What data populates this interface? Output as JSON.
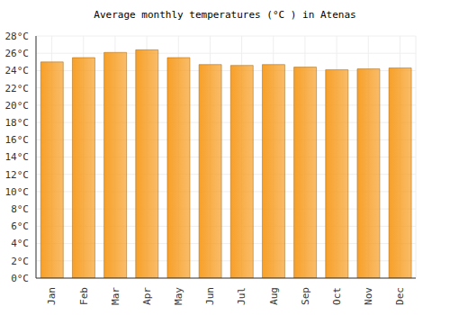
{
  "chart_data": {
    "type": "bar",
    "title": "Average monthly temperatures (°C ) in Atenas",
    "categories": [
      "Jan",
      "Feb",
      "Mar",
      "Apr",
      "May",
      "Jun",
      "Jul",
      "Aug",
      "Sep",
      "Oct",
      "Nov",
      "Dec"
    ],
    "values": [
      25.0,
      25.5,
      26.1,
      26.4,
      25.5,
      24.7,
      24.6,
      24.7,
      24.4,
      24.1,
      24.2,
      24.3
    ],
    "color": "#f7a028",
    "ylim": [
      0,
      28
    ],
    "yticks": [
      {
        "value": 0,
        "label": "0°C"
      },
      {
        "value": 2,
        "label": "2°C"
      },
      {
        "value": 4,
        "label": "4°C"
      },
      {
        "value": 6,
        "label": "6°C"
      },
      {
        "value": 8,
        "label": "8°C"
      },
      {
        "value": 10,
        "label": "10°C"
      },
      {
        "value": 12,
        "label": "12°C"
      },
      {
        "value": 14,
        "label": "14°C"
      },
      {
        "value": 16,
        "label": "16°C"
      },
      {
        "value": 18,
        "label": "18°C"
      },
      {
        "value": 20,
        "label": "20°C"
      },
      {
        "value": 22,
        "label": "22°C"
      },
      {
        "value": 24,
        "label": "24°C"
      },
      {
        "value": 26,
        "label": "26°C"
      },
      {
        "value": 28,
        "label": "28°C"
      }
    ],
    "grid": true
  }
}
